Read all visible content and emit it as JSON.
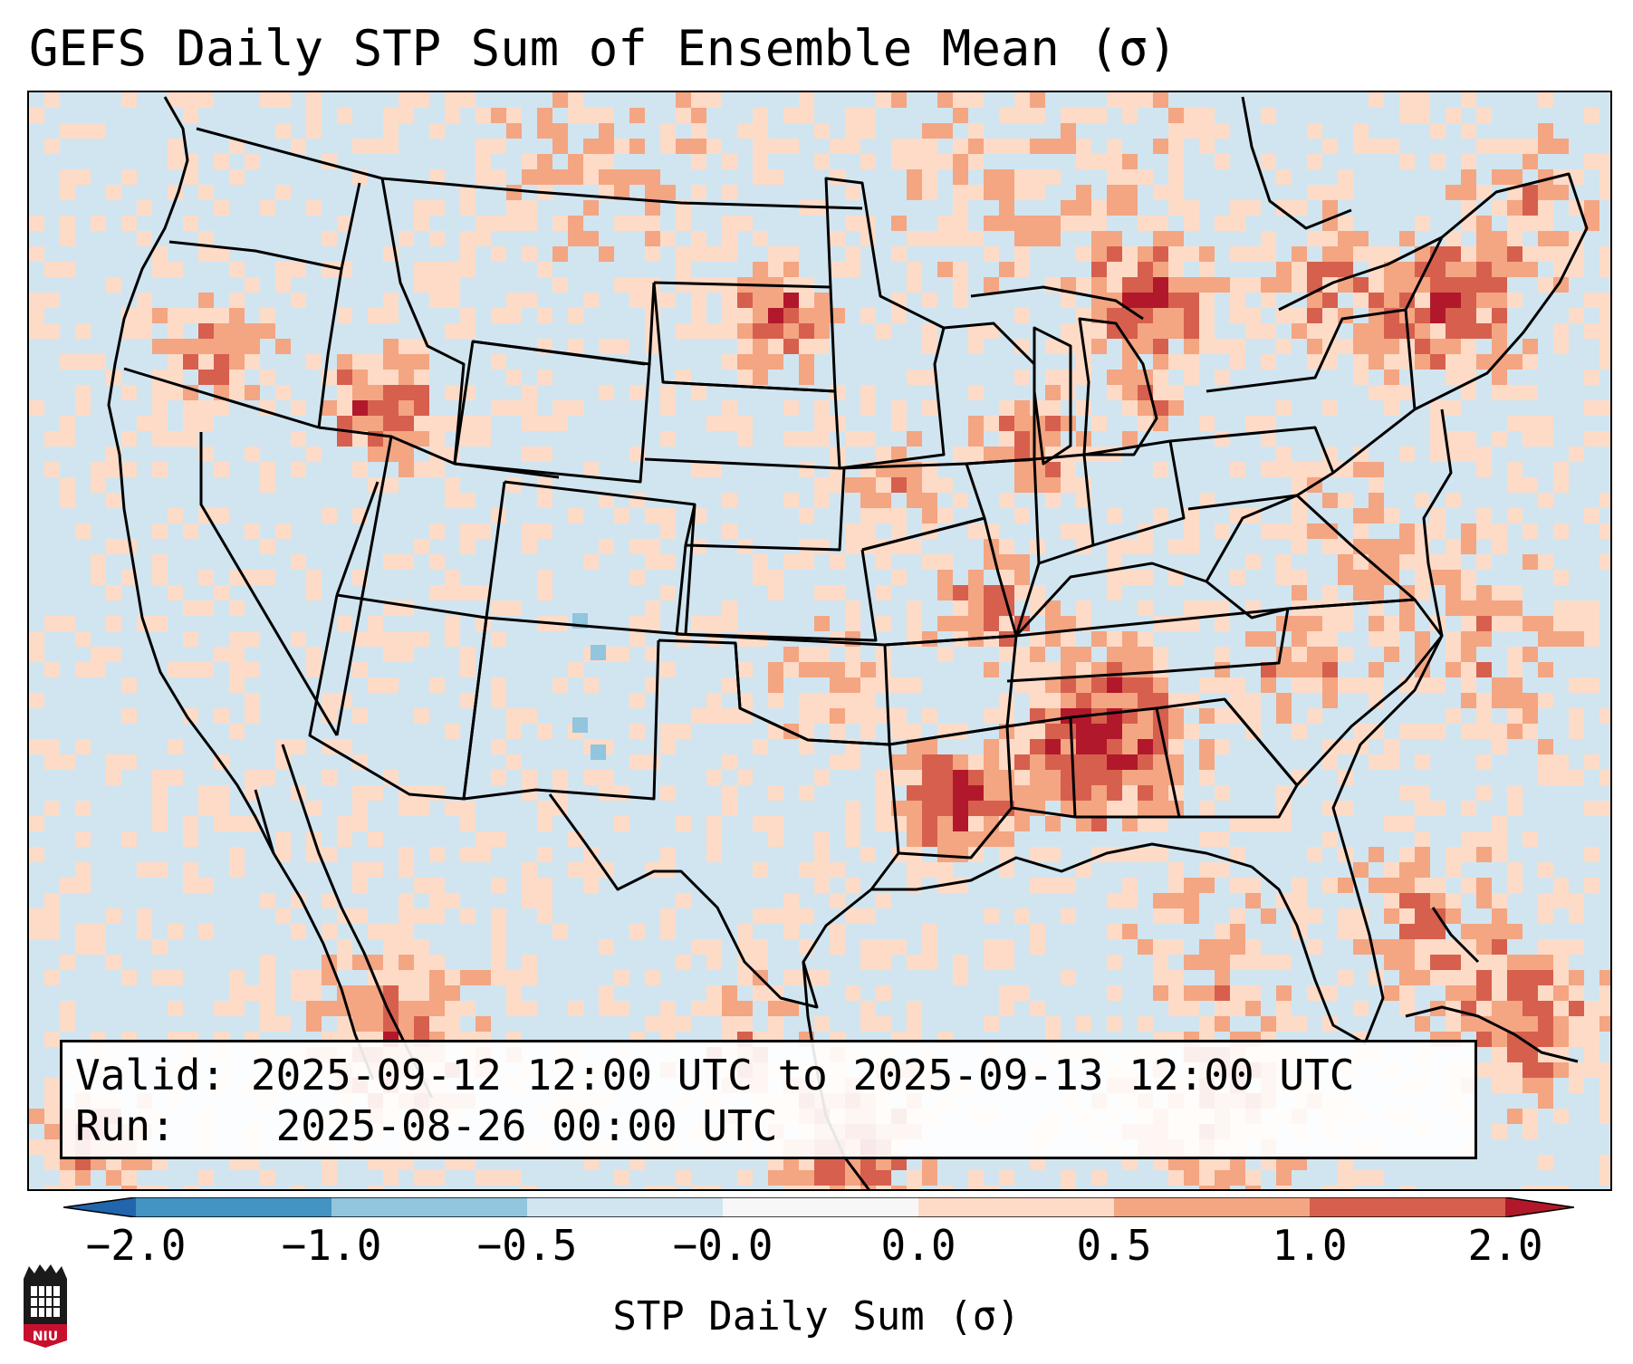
{
  "title": "GEFS Daily STP Sum of Ensemble Mean (σ)",
  "info": {
    "valid_label": "Valid:",
    "valid_value": "2025-09-12 12:00 UTC to 2025-09-13 12:00 UTC",
    "run_label": "Run:",
    "run_value": "2025-08-26 00:00 UTC"
  },
  "colorbar": {
    "label": "STP Daily Sum (σ)",
    "tick_labels": [
      "−2.0",
      "−1.0",
      "−0.5",
      "−0.0",
      "0.0",
      "0.5",
      "1.0",
      "2.0"
    ],
    "colors": [
      "#2166ac",
      "#4393c3",
      "#92c5de",
      "#d1e5f0",
      "#f7f7f7",
      "#fddbc7",
      "#f4a582",
      "#d6604d",
      "#b2182b"
    ],
    "extend": "both"
  },
  "map": {
    "background_color": "#d1e5f0",
    "domain": "Contiguous United States",
    "overlays": [
      "coastlines",
      "state-borders",
      "country-borders"
    ]
  },
  "logo": {
    "text": "NIU"
  }
}
